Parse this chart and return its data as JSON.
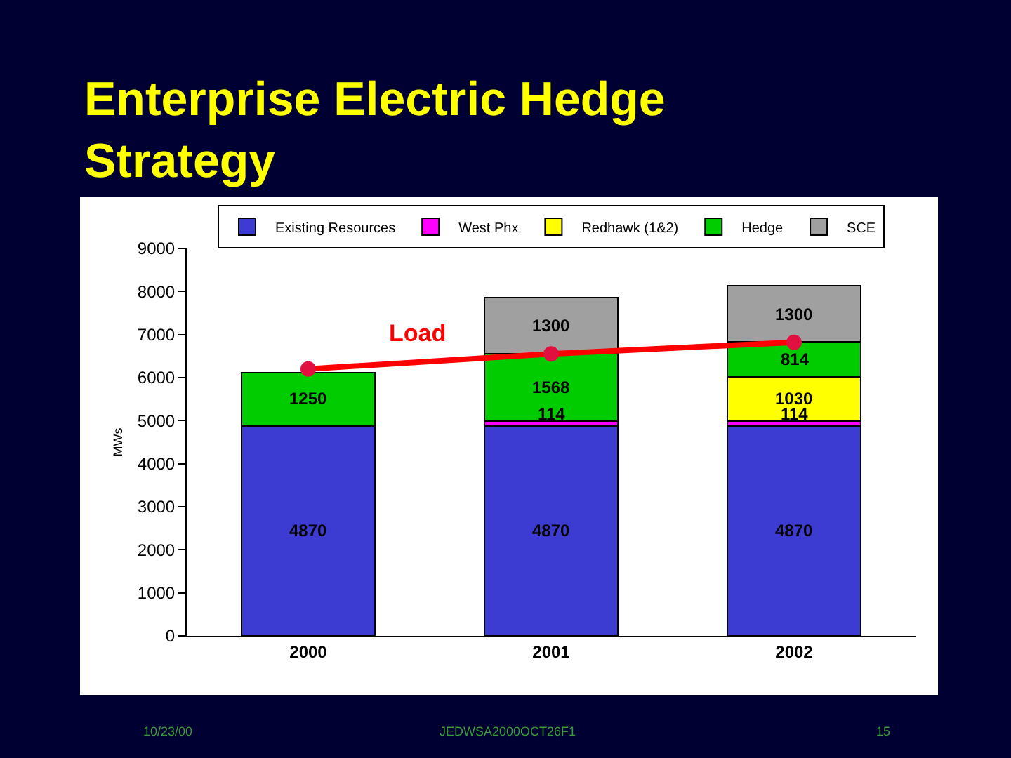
{
  "chart_data": {
    "type": "bar",
    "title": "Enterprise Electric Hedge Strategy",
    "ylabel": "MWs",
    "categories": [
      "2000",
      "2001",
      "2002"
    ],
    "stacked": true,
    "series": [
      {
        "name": "Existing Resources",
        "color": "#3c3cd2",
        "values": [
          4870,
          4870,
          4870
        ],
        "value_labels": [
          "4870",
          "4870",
          "4870"
        ]
      },
      {
        "name": "West Phx",
        "color": "#ff00ff",
        "values": [
          null,
          114,
          114
        ],
        "value_labels": [
          null,
          "114",
          "114"
        ]
      },
      {
        "name": "Redhawk (1&2)",
        "color": "#ffff00",
        "values": [
          null,
          null,
          1030
        ],
        "value_labels": [
          null,
          null,
          "1030"
        ]
      },
      {
        "name": "Hedge",
        "color": "#00cc00",
        "values": [
          1250,
          1568,
          814
        ],
        "value_labels": [
          "1250",
          "1568",
          "814"
        ]
      },
      {
        "name": "SCE",
        "color": "#a0a0a0",
        "values": [
          null,
          1300,
          1300
        ],
        "value_labels": [
          null,
          "1300",
          "1300"
        ]
      },
      {
        "name": "Load",
        "type": "line",
        "color": "#ff0000",
        "marker": "circle",
        "values": [
          6200,
          6550,
          6820
        ]
      }
    ],
    "ylim": [
      0,
      9000
    ],
    "yticks": [
      0,
      1000,
      2000,
      3000,
      4000,
      5000,
      6000,
      7000,
      8000,
      9000
    ],
    "grid": false,
    "legend": "top",
    "annotations": [
      "10/23/00",
      "JEDWSA2000OCT26F1",
      "15"
    ]
  }
}
